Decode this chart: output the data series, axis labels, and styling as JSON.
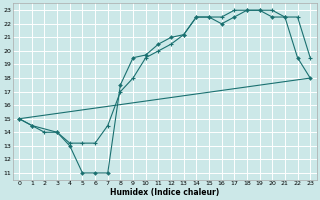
{
  "title": "",
  "xlabel": "Humidex (Indice chaleur)",
  "ylabel": "",
  "bg_color": "#cce8e8",
  "grid_color": "#ffffff",
  "line_color": "#1a7070",
  "xlim": [
    -0.5,
    23.5
  ],
  "ylim": [
    10.5,
    23.5
  ],
  "xticks": [
    0,
    1,
    2,
    3,
    4,
    5,
    6,
    7,
    8,
    9,
    10,
    11,
    12,
    13,
    14,
    15,
    16,
    17,
    18,
    19,
    20,
    21,
    22,
    23
  ],
  "yticks": [
    11,
    12,
    13,
    14,
    15,
    16,
    17,
    18,
    19,
    20,
    21,
    22,
    23
  ],
  "line1_x": [
    0,
    1,
    3,
    4,
    5,
    6,
    7,
    8,
    9,
    10,
    11,
    12,
    13,
    14,
    15,
    16,
    17,
    18,
    19,
    20,
    21,
    22,
    23
  ],
  "line1_y": [
    15,
    14.5,
    14,
    13,
    11,
    11,
    11,
    17.5,
    19.5,
    19.7,
    20.5,
    21,
    21.2,
    22.5,
    22.5,
    22,
    22.5,
    23,
    23,
    22.5,
    22.5,
    19.5,
    18
  ],
  "line2_x": [
    0,
    23
  ],
  "line2_y": [
    15,
    18
  ],
  "line3_x": [
    0,
    1,
    2,
    3,
    4,
    5,
    6,
    7,
    8,
    9,
    10,
    11,
    12,
    13,
    14,
    15,
    16,
    17,
    18,
    19,
    20,
    21,
    22,
    23
  ],
  "line3_y": [
    15,
    14.5,
    14,
    14,
    13.2,
    13.2,
    13.2,
    14.5,
    17,
    18,
    19.5,
    20,
    20.5,
    21.2,
    22.5,
    22.5,
    22.5,
    23,
    23,
    23,
    23,
    22.5,
    22.5,
    19.5
  ]
}
